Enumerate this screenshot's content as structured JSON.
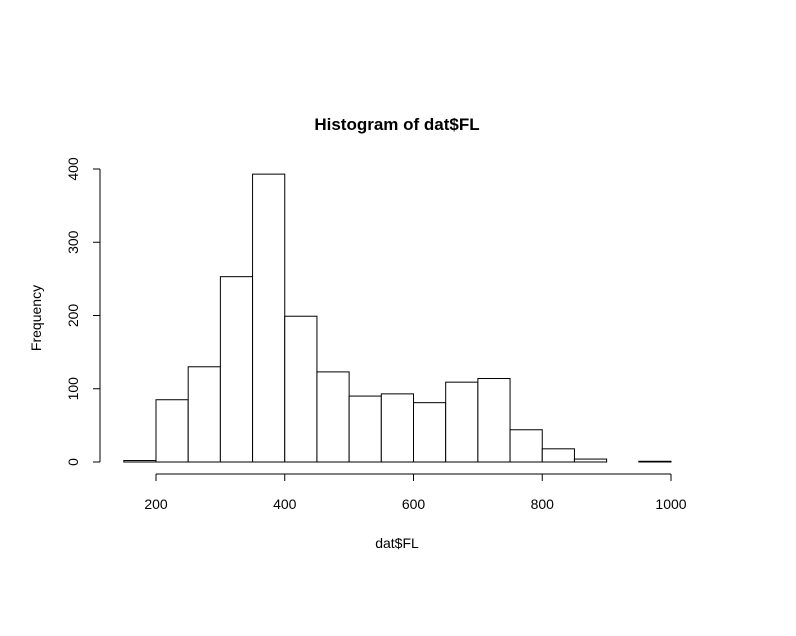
{
  "chart_data": {
    "type": "bar",
    "title": "Histogram of dat$FL",
    "xlabel": "dat$FL",
    "ylabel": "Frequency",
    "bins": [
      {
        "from": 150,
        "to": 200,
        "count": 2
      },
      {
        "from": 200,
        "to": 250,
        "count": 85
      },
      {
        "from": 250,
        "to": 300,
        "count": 130
      },
      {
        "from": 300,
        "to": 350,
        "count": 253
      },
      {
        "from": 350,
        "to": 400,
        "count": 393
      },
      {
        "from": 400,
        "to": 450,
        "count": 199
      },
      {
        "from": 450,
        "to": 500,
        "count": 123
      },
      {
        "from": 500,
        "to": 550,
        "count": 90
      },
      {
        "from": 550,
        "to": 600,
        "count": 93
      },
      {
        "from": 600,
        "to": 650,
        "count": 81
      },
      {
        "from": 650,
        "to": 700,
        "count": 109
      },
      {
        "from": 700,
        "to": 750,
        "count": 114
      },
      {
        "from": 750,
        "to": 800,
        "count": 44
      },
      {
        "from": 800,
        "to": 850,
        "count": 18
      },
      {
        "from": 850,
        "to": 900,
        "count": 4
      },
      {
        "from": 900,
        "to": 950,
        "count": 0
      },
      {
        "from": 950,
        "to": 1000,
        "count": 1
      }
    ],
    "x_ticks": [
      200,
      400,
      600,
      800,
      1000
    ],
    "y_ticks": [
      0,
      100,
      200,
      300,
      400
    ],
    "xlim": [
      150,
      1000
    ],
    "ylim": [
      0,
      400
    ],
    "grid": false,
    "legend": "none"
  }
}
